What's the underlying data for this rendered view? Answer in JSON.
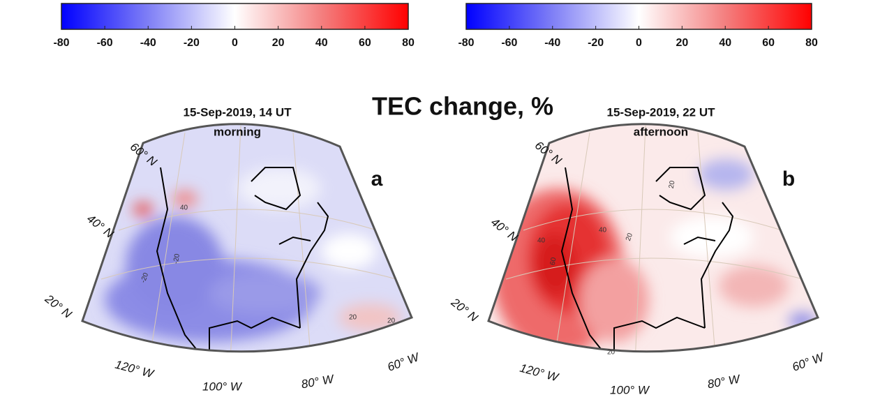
{
  "title": "TEC change, %",
  "colorbars": [
    {
      "ticks": [
        -80,
        -60,
        -40,
        -20,
        0,
        20,
        40,
        60,
        80
      ]
    },
    {
      "ticks": [
        -80,
        -60,
        -40,
        -20,
        0,
        20,
        40,
        60,
        80
      ]
    }
  ],
  "maps": [
    {
      "title": "15-Sep-2019, 14 UT",
      "subtitle": "morning",
      "panel_label": "a",
      "lat_labels": [
        "60° N",
        "40° N",
        "20° N"
      ],
      "lon_labels": [
        "120° W",
        "100° W",
        "80° W",
        "60° W"
      ],
      "contour_labels": [
        "40",
        "-20",
        "-20",
        "20",
        "20"
      ]
    },
    {
      "title": "15-Sep-2019, 22 UT",
      "subtitle": "afternoon",
      "panel_label": "b",
      "lat_labels": [
        "60° N",
        "40° N",
        "20° N"
      ],
      "lon_labels": [
        "120° W",
        "100° W",
        "80° W",
        "60° W"
      ],
      "contour_labels": [
        "20",
        "40",
        "60",
        "20",
        "40",
        "20"
      ]
    }
  ]
}
